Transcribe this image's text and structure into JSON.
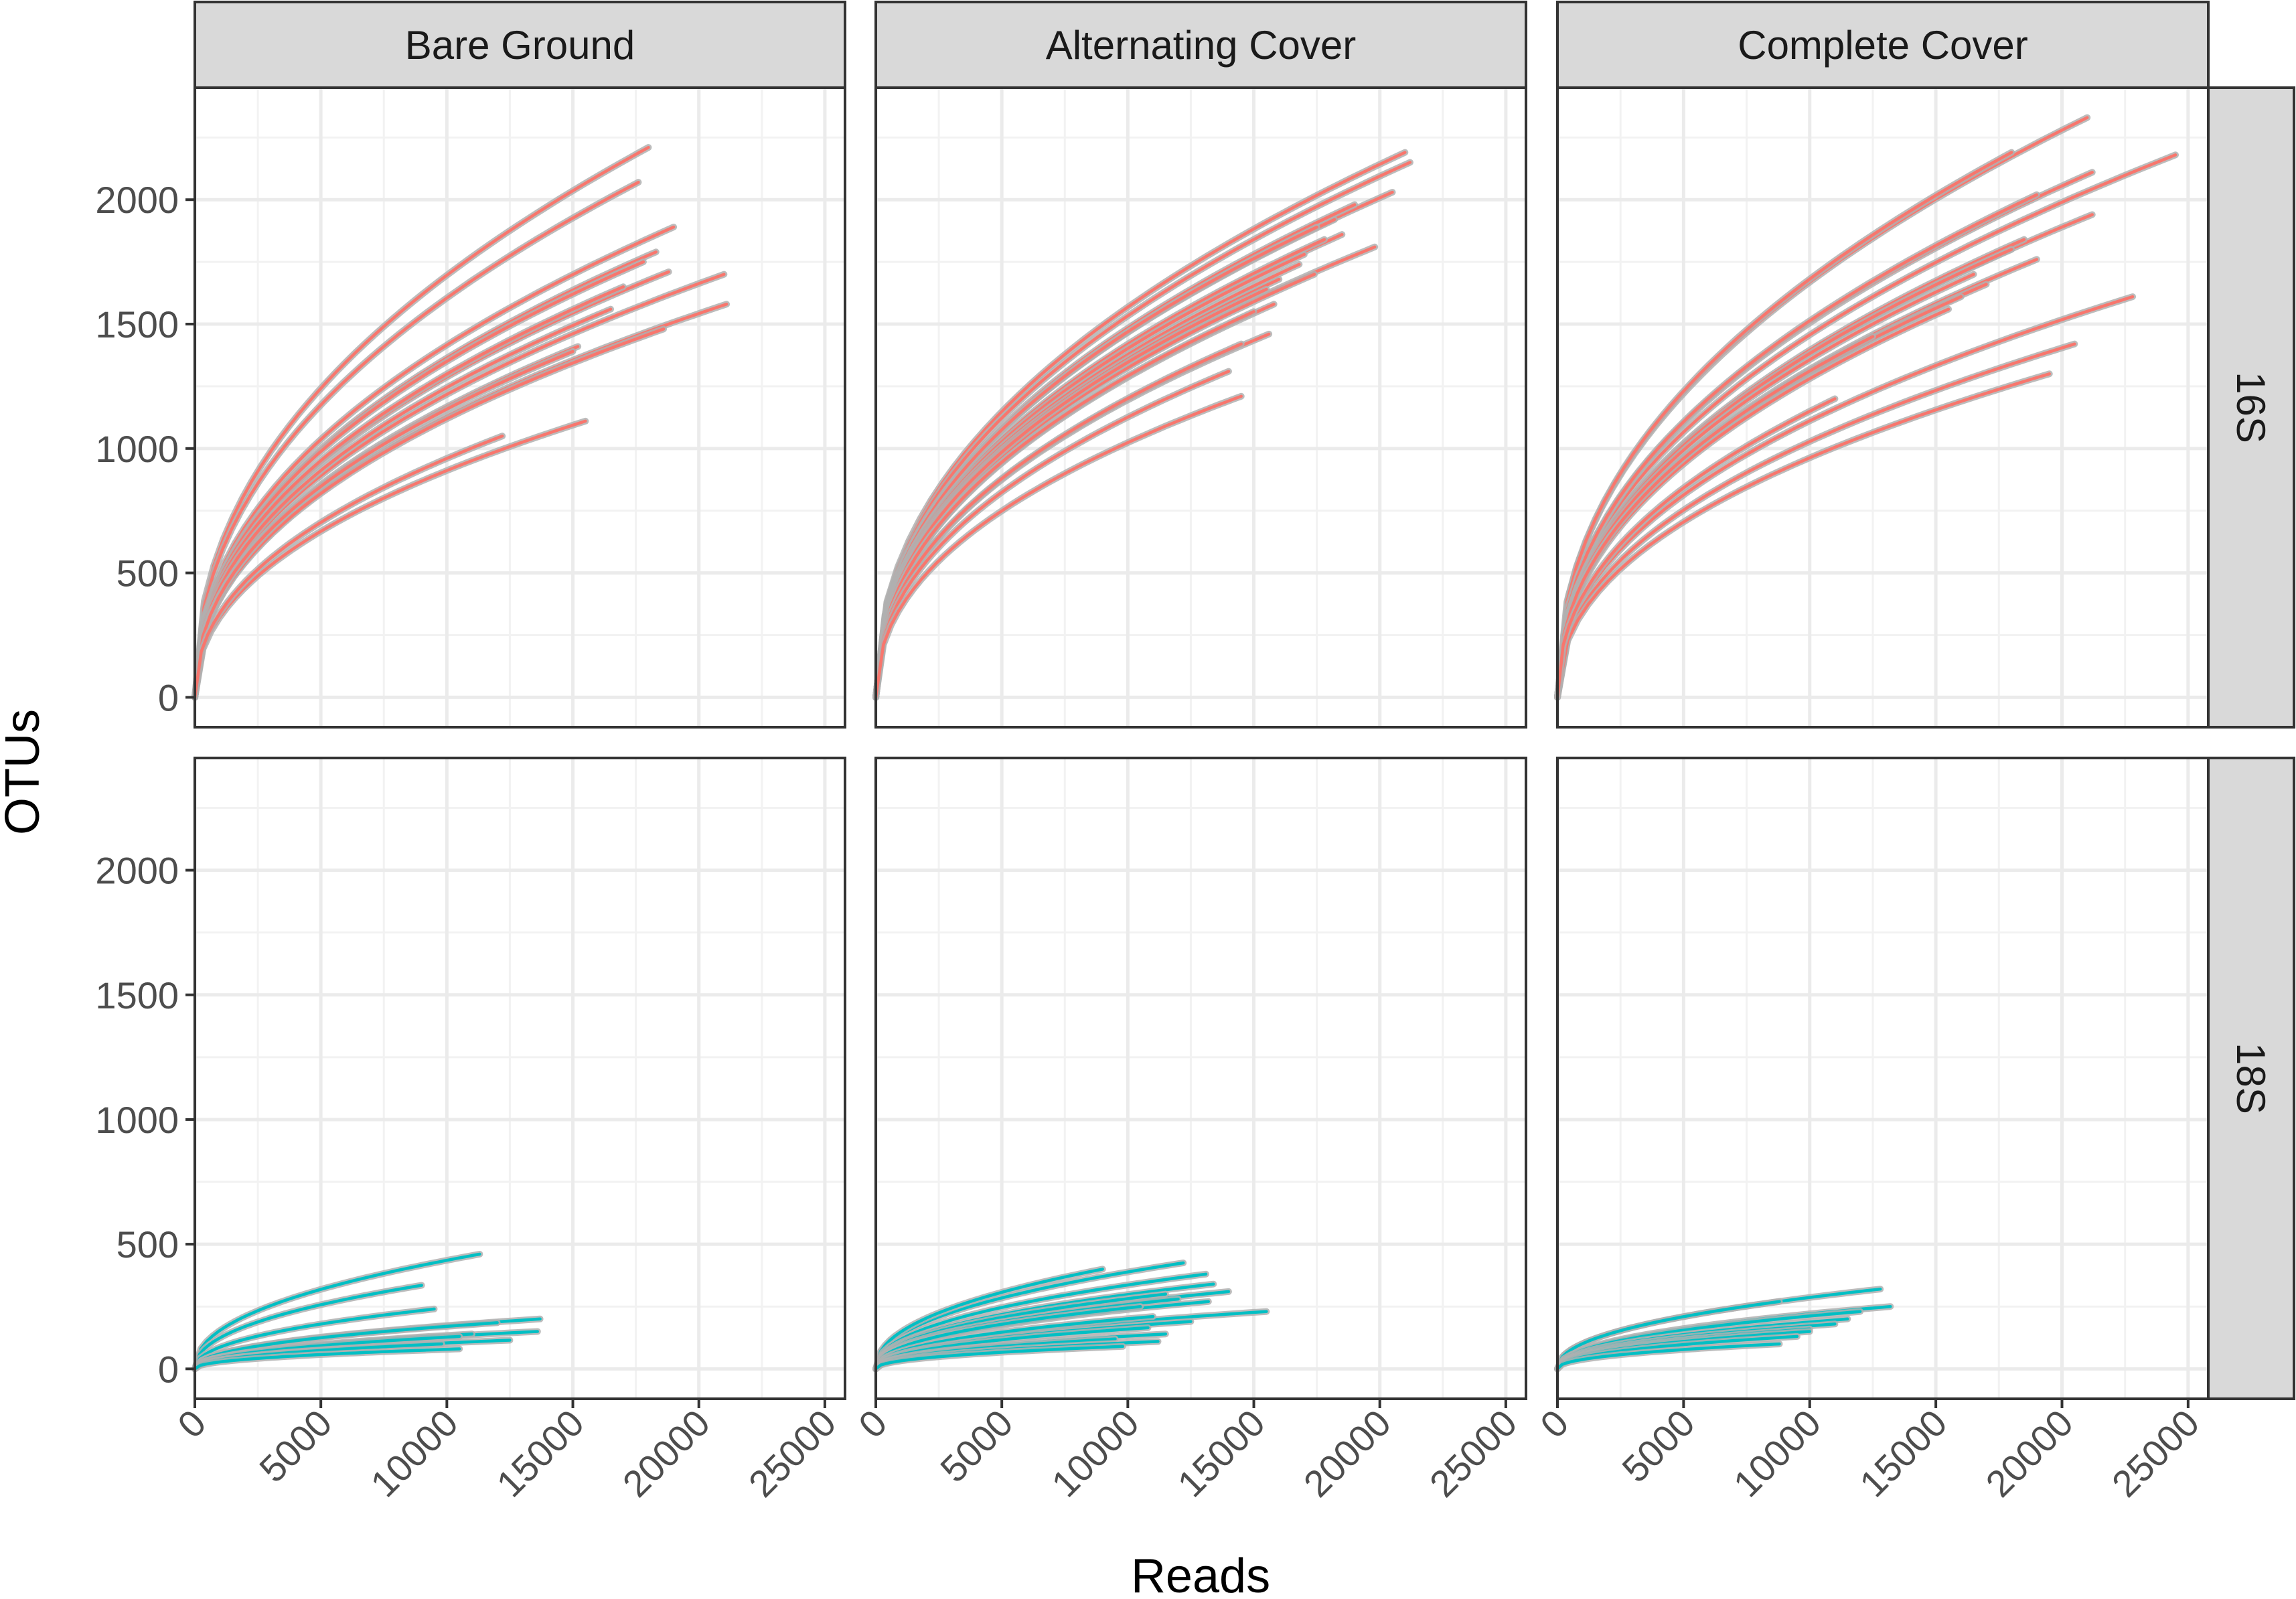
{
  "chart_data": {
    "type": "line",
    "xlabel": "Reads",
    "ylabel": "OTUs",
    "xlim": [
      0,
      25800
    ],
    "ylim": [
      -120,
      2450
    ],
    "x_ticks": [
      0,
      5000,
      10000,
      15000,
      20000,
      25000
    ],
    "y_ticks": [
      0,
      500,
      1000,
      1500,
      2000
    ],
    "grid": true,
    "column_facets": [
      "Bare Ground",
      "Alternating Cover",
      "Complete Cover"
    ],
    "row_facets": [
      "16S",
      "18S"
    ],
    "colors": {
      "16S": "#F8766D",
      "18S": "#00BFC4",
      "uncertainty": "#B0B0B0"
    },
    "panels": [
      {
        "column": "Bare Ground",
        "row": "16S",
        "series": [
          {
            "x_end": 18000,
            "y_end": 2210
          },
          {
            "x_end": 17600,
            "y_end": 2070
          },
          {
            "x_end": 19000,
            "y_end": 1890
          },
          {
            "x_end": 18300,
            "y_end": 1790
          },
          {
            "x_end": 18800,
            "y_end": 1710
          },
          {
            "x_end": 21000,
            "y_end": 1700
          },
          {
            "x_end": 17800,
            "y_end": 1750
          },
          {
            "x_end": 17000,
            "y_end": 1650
          },
          {
            "x_end": 21100,
            "y_end": 1580
          },
          {
            "x_end": 16500,
            "y_end": 1560
          },
          {
            "x_end": 18600,
            "y_end": 1480
          },
          {
            "x_end": 15200,
            "y_end": 1410
          },
          {
            "x_end": 15000,
            "y_end": 1390
          },
          {
            "x_end": 15500,
            "y_end": 1110
          },
          {
            "x_end": 12200,
            "y_end": 1050
          }
        ]
      },
      {
        "column": "Alternating Cover",
        "row": "16S",
        "series": [
          {
            "x_end": 21000,
            "y_end": 2190
          },
          {
            "x_end": 21200,
            "y_end": 2150
          },
          {
            "x_end": 20500,
            "y_end": 2030
          },
          {
            "x_end": 19000,
            "y_end": 1980
          },
          {
            "x_end": 18200,
            "y_end": 1920
          },
          {
            "x_end": 17500,
            "y_end": 1890
          },
          {
            "x_end": 18500,
            "y_end": 1860
          },
          {
            "x_end": 17800,
            "y_end": 1840
          },
          {
            "x_end": 19800,
            "y_end": 1810
          },
          {
            "x_end": 17000,
            "y_end": 1780
          },
          {
            "x_end": 16800,
            "y_end": 1740
          },
          {
            "x_end": 17400,
            "y_end": 1700
          },
          {
            "x_end": 16000,
            "y_end": 1680
          },
          {
            "x_end": 15500,
            "y_end": 1640
          },
          {
            "x_end": 15800,
            "y_end": 1580
          },
          {
            "x_end": 15000,
            "y_end": 1550
          },
          {
            "x_end": 15600,
            "y_end": 1460
          },
          {
            "x_end": 14500,
            "y_end": 1420
          },
          {
            "x_end": 14000,
            "y_end": 1310
          },
          {
            "x_end": 14500,
            "y_end": 1210
          }
        ]
      },
      {
        "column": "Complete Cover",
        "row": "16S",
        "series": [
          {
            "x_end": 21000,
            "y_end": 2330
          },
          {
            "x_end": 18000,
            "y_end": 2190
          },
          {
            "x_end": 24500,
            "y_end": 2180
          },
          {
            "x_end": 21200,
            "y_end": 2110
          },
          {
            "x_end": 19000,
            "y_end": 2020
          },
          {
            "x_end": 21200,
            "y_end": 1940
          },
          {
            "x_end": 18500,
            "y_end": 1840
          },
          {
            "x_end": 18000,
            "y_end": 1800
          },
          {
            "x_end": 19000,
            "y_end": 1760
          },
          {
            "x_end": 16500,
            "y_end": 1700
          },
          {
            "x_end": 17000,
            "y_end": 1660
          },
          {
            "x_end": 16000,
            "y_end": 1610
          },
          {
            "x_end": 22800,
            "y_end": 1610
          },
          {
            "x_end": 15500,
            "y_end": 1560
          },
          {
            "x_end": 12500,
            "y_end": 1450
          },
          {
            "x_end": 20500,
            "y_end": 1420
          },
          {
            "x_end": 19500,
            "y_end": 1300
          },
          {
            "x_end": 11000,
            "y_end": 1200
          }
        ]
      },
      {
        "column": "Bare Ground",
        "row": "18S",
        "series": [
          {
            "x_end": 11300,
            "y_end": 460
          },
          {
            "x_end": 9000,
            "y_end": 335
          },
          {
            "x_end": 9500,
            "y_end": 240
          },
          {
            "x_end": 13700,
            "y_end": 200
          },
          {
            "x_end": 12000,
            "y_end": 185
          },
          {
            "x_end": 13600,
            "y_end": 150
          },
          {
            "x_end": 11000,
            "y_end": 140
          },
          {
            "x_end": 10500,
            "y_end": 130
          },
          {
            "x_end": 12500,
            "y_end": 115
          },
          {
            "x_end": 9800,
            "y_end": 100
          },
          {
            "x_end": 10500,
            "y_end": 80
          }
        ]
      },
      {
        "column": "Alternating Cover",
        "row": "18S",
        "series": [
          {
            "x_end": 12200,
            "y_end": 425
          },
          {
            "x_end": 9000,
            "y_end": 400
          },
          {
            "x_end": 13100,
            "y_end": 380
          },
          {
            "x_end": 13400,
            "y_end": 340
          },
          {
            "x_end": 14000,
            "y_end": 310
          },
          {
            "x_end": 11500,
            "y_end": 300
          },
          {
            "x_end": 12000,
            "y_end": 280
          },
          {
            "x_end": 13200,
            "y_end": 270
          },
          {
            "x_end": 10500,
            "y_end": 250
          },
          {
            "x_end": 15500,
            "y_end": 230
          },
          {
            "x_end": 11000,
            "y_end": 210
          },
          {
            "x_end": 12500,
            "y_end": 190
          },
          {
            "x_end": 10800,
            "y_end": 165
          },
          {
            "x_end": 11500,
            "y_end": 140
          },
          {
            "x_end": 9500,
            "y_end": 120
          },
          {
            "x_end": 11200,
            "y_end": 110
          },
          {
            "x_end": 9800,
            "y_end": 90
          }
        ]
      },
      {
        "column": "Complete Cover",
        "row": "18S",
        "series": [
          {
            "x_end": 12800,
            "y_end": 320
          },
          {
            "x_end": 13200,
            "y_end": 250
          },
          {
            "x_end": 8800,
            "y_end": 270
          },
          {
            "x_end": 12000,
            "y_end": 230
          },
          {
            "x_end": 11500,
            "y_end": 200
          },
          {
            "x_end": 11000,
            "y_end": 180
          },
          {
            "x_end": 10000,
            "y_end": 160
          },
          {
            "x_end": 10000,
            "y_end": 150
          },
          {
            "x_end": 9500,
            "y_end": 130
          },
          {
            "x_end": 8800,
            "y_end": 100
          }
        ]
      }
    ]
  }
}
